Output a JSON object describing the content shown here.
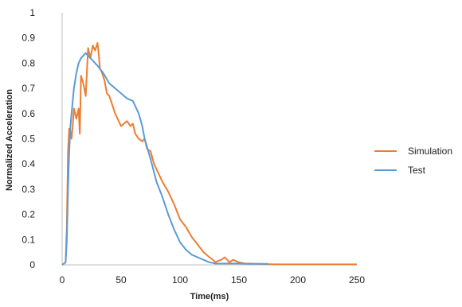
{
  "chart_data": {
    "type": "line",
    "title": "",
    "xlabel": "Time(ms)",
    "ylabel": "Normalized Acceleration",
    "xlim": [
      0,
      250
    ],
    "ylim": [
      0,
      1
    ],
    "x_ticks": [
      "0",
      "50",
      "100",
      "150",
      "200",
      "250"
    ],
    "y_ticks": [
      "0",
      "0.1",
      "0.2",
      "0.3",
      "0.4",
      "0.5",
      "0.6",
      "0.7",
      "0.8",
      "0.9",
      "1"
    ],
    "grid": false,
    "legend_position": "right",
    "series": [
      {
        "name": "Simulation",
        "color": "#ED7D31",
        "x": [
          0,
          3,
          4,
          5,
          6,
          7,
          8,
          9,
          10,
          12,
          14,
          15,
          16,
          18,
          20,
          22,
          24,
          26,
          28,
          30,
          31,
          32,
          34,
          36,
          38,
          40,
          45,
          50,
          55,
          58,
          60,
          62,
          65,
          68,
          70,
          72,
          75,
          78,
          80,
          85,
          90,
          95,
          100,
          105,
          110,
          115,
          120,
          125,
          128,
          130,
          132,
          135,
          138,
          140,
          142,
          145,
          150,
          155,
          160,
          170,
          180,
          200,
          220,
          240,
          250
        ],
        "y": [
          0.0,
          0.01,
          0.15,
          0.45,
          0.54,
          0.53,
          0.5,
          0.55,
          0.62,
          0.58,
          0.62,
          0.52,
          0.75,
          0.72,
          0.67,
          0.86,
          0.82,
          0.87,
          0.85,
          0.88,
          0.84,
          0.78,
          0.76,
          0.73,
          0.68,
          0.67,
          0.6,
          0.55,
          0.57,
          0.55,
          0.56,
          0.52,
          0.5,
          0.49,
          0.5,
          0.46,
          0.45,
          0.4,
          0.38,
          0.33,
          0.29,
          0.24,
          0.18,
          0.15,
          0.11,
          0.08,
          0.05,
          0.03,
          0.02,
          0.01,
          0.015,
          0.02,
          0.03,
          0.02,
          0.01,
          0.02,
          0.01,
          0.005,
          0.005,
          0.003,
          0.002,
          0.002,
          0.002,
          0.002,
          0.002
        ]
      },
      {
        "name": "Test",
        "color": "#5B9BD5",
        "x": [
          0,
          3,
          4,
          5,
          6,
          7,
          8,
          10,
          12,
          14,
          16,
          18,
          20,
          22,
          24,
          26,
          28,
          30,
          35,
          40,
          45,
          50,
          55,
          60,
          65,
          68,
          70,
          75,
          80,
          85,
          90,
          95,
          100,
          105,
          110,
          115,
          120,
          125,
          130,
          140,
          150,
          160,
          170,
          175
        ],
        "y": [
          0.0,
          0.01,
          0.1,
          0.3,
          0.45,
          0.55,
          0.6,
          0.7,
          0.76,
          0.8,
          0.82,
          0.83,
          0.84,
          0.83,
          0.82,
          0.81,
          0.8,
          0.79,
          0.76,
          0.72,
          0.7,
          0.68,
          0.66,
          0.65,
          0.6,
          0.55,
          0.5,
          0.42,
          0.33,
          0.27,
          0.2,
          0.14,
          0.09,
          0.06,
          0.04,
          0.03,
          0.02,
          0.01,
          0.005,
          0.005,
          0.005,
          0.004,
          0.004,
          0.004
        ]
      }
    ]
  }
}
